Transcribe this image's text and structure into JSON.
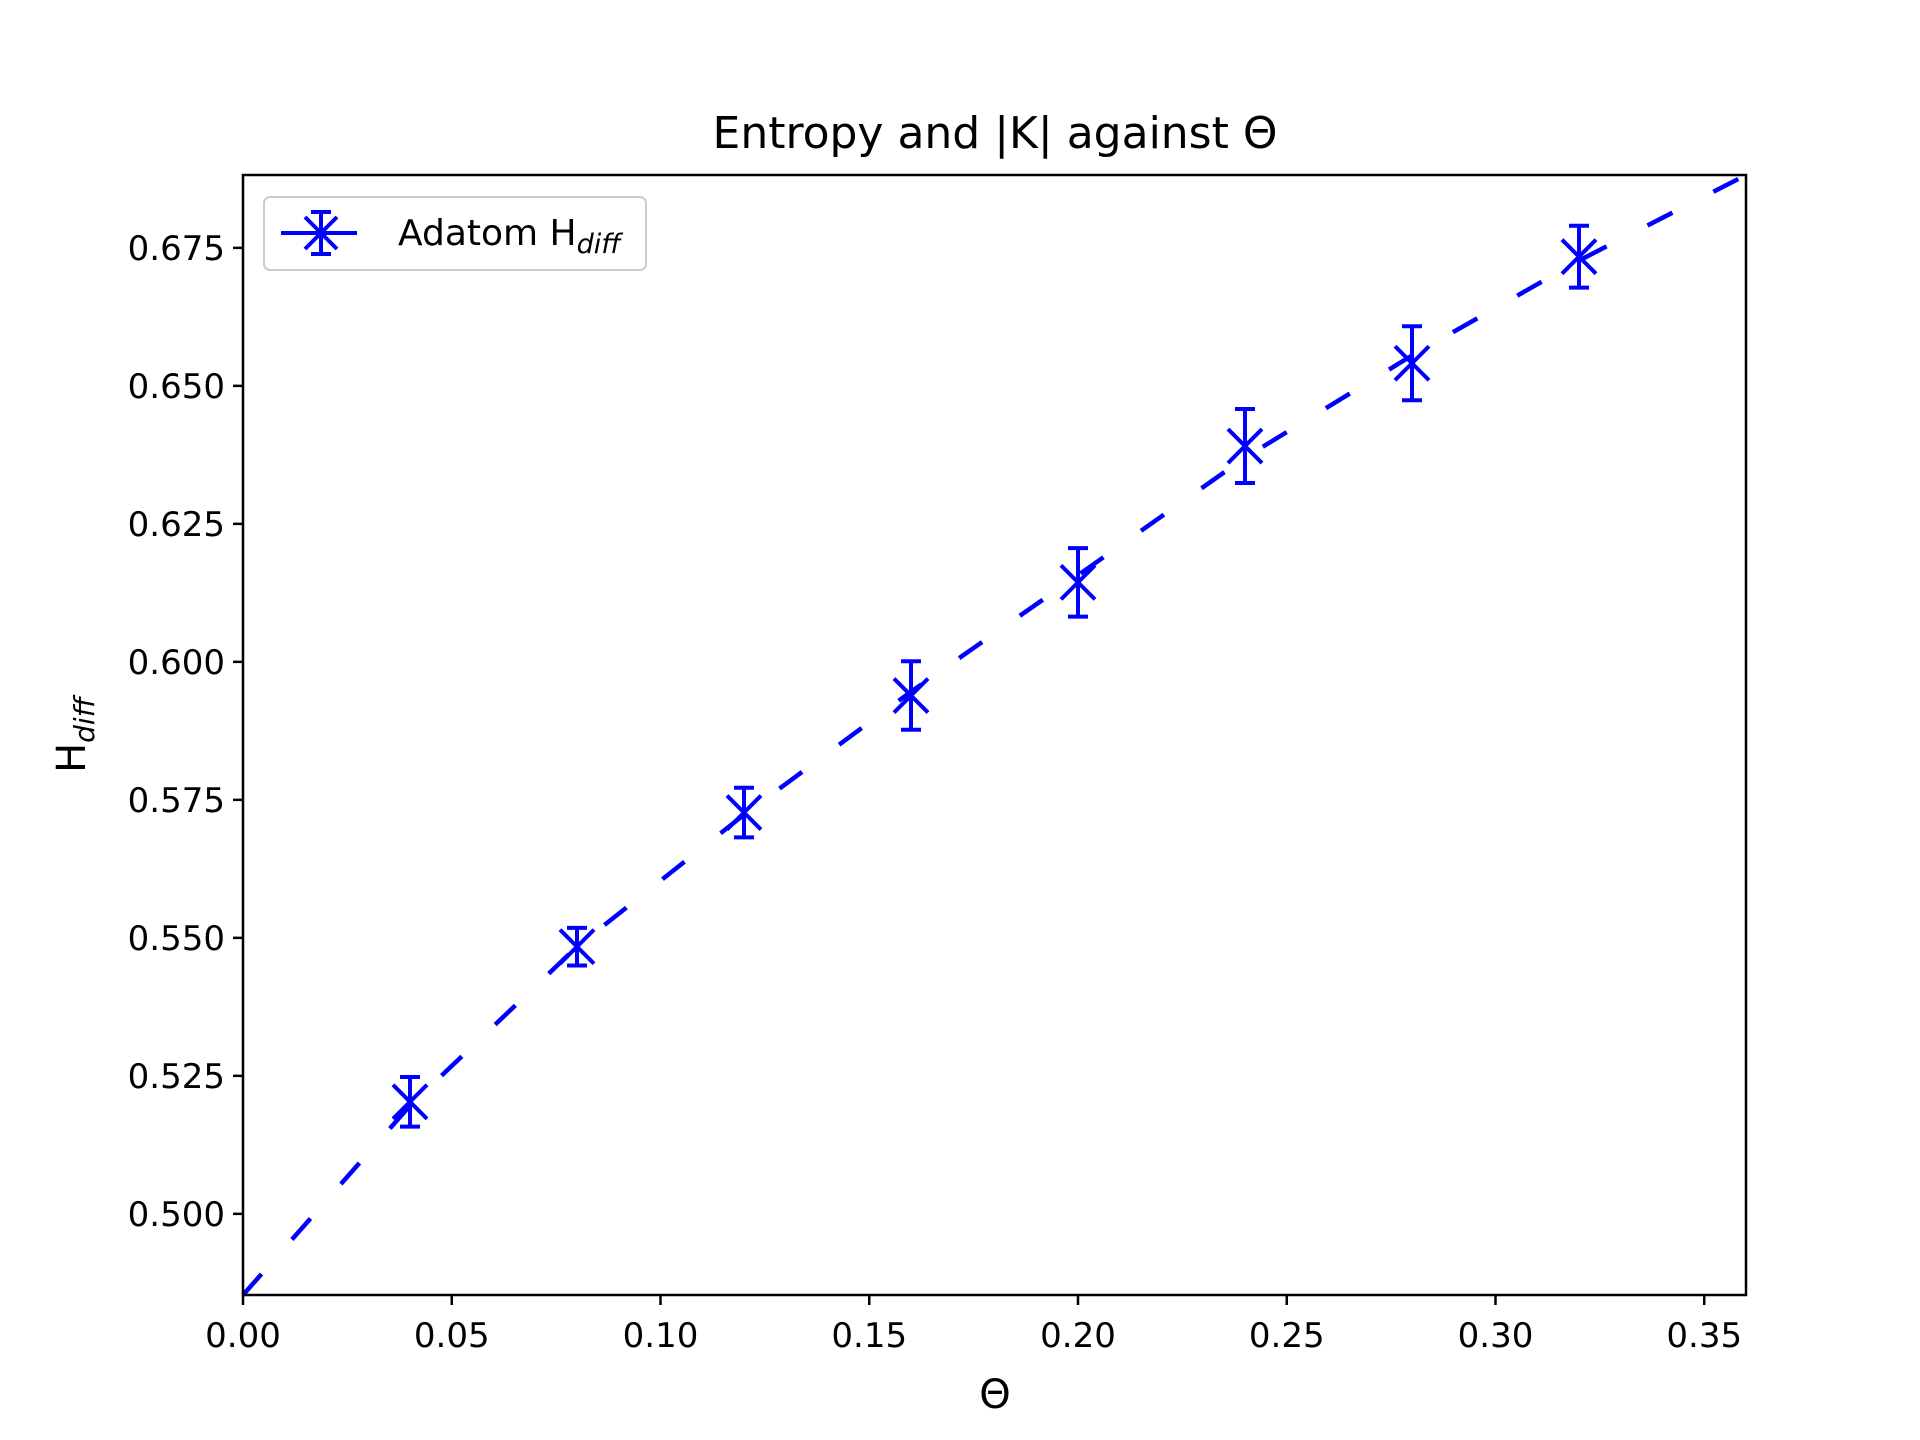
{
  "chart_data": {
    "type": "scatter",
    "title": "Entropy and |K| against Θ",
    "xlabel": "Θ",
    "ylabel": {
      "main": "H",
      "sub": "diff"
    },
    "xlim": [
      0.0,
      0.36
    ],
    "ylim": [
      0.4853,
      0.6882
    ],
    "xticks": [
      0.0,
      0.05,
      0.1,
      0.15,
      0.2,
      0.25,
      0.3,
      0.35
    ],
    "xtick_labels": [
      "0.00",
      "0.05",
      "0.10",
      "0.15",
      "0.20",
      "0.25",
      "0.30",
      "0.35"
    ],
    "yticks": [
      0.5,
      0.525,
      0.55,
      0.575,
      0.6,
      0.625,
      0.65,
      0.675
    ],
    "ytick_labels": [
      "0.500",
      "0.525",
      "0.550",
      "0.575",
      "0.600",
      "0.625",
      "0.650",
      "0.675"
    ],
    "grid": false,
    "legend_position": "top-left",
    "series": [
      {
        "name": "Adatom H",
        "name_sub": "diff",
        "color": "#0000ff",
        "marker": "x-with-errorbar",
        "points": [
          {
            "x": 0.04,
            "y": 0.5203,
            "err": 0.0045
          },
          {
            "x": 0.08,
            "y": 0.5484,
            "err": 0.0034
          },
          {
            "x": 0.12,
            "y": 0.5727,
            "err": 0.0045
          },
          {
            "x": 0.16,
            "y": 0.5939,
            "err": 0.0062
          },
          {
            "x": 0.2,
            "y": 0.6144,
            "err": 0.0062
          },
          {
            "x": 0.24,
            "y": 0.6391,
            "err": 0.0067
          },
          {
            "x": 0.28,
            "y": 0.6541,
            "err": 0.0067
          },
          {
            "x": 0.32,
            "y": 0.6734,
            "err": 0.0056
          }
        ]
      },
      {
        "name": "",
        "color": "#0000ff",
        "line_style": "dashed",
        "x": [
          0.0,
          0.04,
          0.08,
          0.12,
          0.16,
          0.2,
          0.24,
          0.28,
          0.32,
          0.36
        ],
        "y": [
          0.4853,
          0.5196,
          0.5484,
          0.5723,
          0.5946,
          0.6157,
          0.637,
          0.6555,
          0.6727,
          0.6882
        ]
      }
    ]
  }
}
